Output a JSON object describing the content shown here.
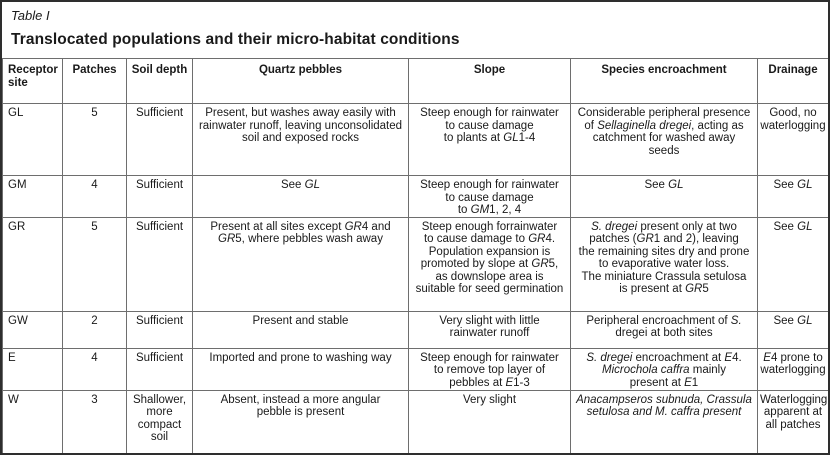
{
  "title": {
    "table_label": "Table I",
    "heading": "Translocated populations and their micro-habitat conditions"
  },
  "table": {
    "columns": [
      {
        "key": "site",
        "label": "Receptor site"
      },
      {
        "key": "patches",
        "label": "Patches"
      },
      {
        "key": "soil",
        "label": "Soil depth"
      },
      {
        "key": "quartz",
        "label": "Quartz pebbles"
      },
      {
        "key": "slope",
        "label": "Slope"
      },
      {
        "key": "species",
        "label": "Species encroachment"
      },
      {
        "key": "drainage",
        "label": "Drainage"
      }
    ],
    "rows": [
      {
        "site": [
          [
            {
              "t": "GL"
            }
          ]
        ],
        "patches": [
          [
            {
              "t": "5"
            }
          ]
        ],
        "soil": [
          [
            {
              "t": "Sufficient"
            }
          ]
        ],
        "quartz": [
          [
            {
              "t": "Present, but washes away easily with"
            }
          ],
          [
            {
              "t": "rainwater runoff, leaving unconsolidated"
            }
          ],
          [
            {
              "t": "soil and exposed rocks"
            }
          ]
        ],
        "slope": [
          [
            {
              "t": "Steep enough for rainwater"
            }
          ],
          [
            {
              "t": "to cause damage"
            }
          ],
          [
            {
              "t": "to plants at "
            },
            {
              "t": "GL",
              "i": true
            },
            {
              "t": "1-4"
            }
          ]
        ],
        "species": [
          [
            {
              "t": "Considerable peripheral presence"
            }
          ],
          [
            {
              "t": "of "
            },
            {
              "t": "Sellaginella dregei",
              "i": true
            },
            {
              "t": ", acting as"
            }
          ],
          [
            {
              "t": "catchment for washed away"
            }
          ],
          [
            {
              "t": "seeds"
            }
          ]
        ],
        "drainage": [
          [
            {
              "t": "Good, no"
            }
          ],
          [
            {
              "t": "waterlogging"
            }
          ]
        ]
      },
      {
        "site": [
          [
            {
              "t": "GM"
            }
          ]
        ],
        "patches": [
          [
            {
              "t": "4"
            }
          ]
        ],
        "soil": [
          [
            {
              "t": "Sufficient"
            }
          ]
        ],
        "quartz": [
          [
            {
              "t": "See "
            },
            {
              "t": "GL",
              "i": true
            }
          ]
        ],
        "slope": [
          [
            {
              "t": "Steep enough for rainwater"
            }
          ],
          [
            {
              "t": "to cause damage"
            }
          ],
          [
            {
              "t": "to "
            },
            {
              "t": "GM",
              "i": true
            },
            {
              "t": "1, 2, 4"
            }
          ]
        ],
        "species": [
          [
            {
              "t": "See "
            },
            {
              "t": "GL",
              "i": true
            }
          ]
        ],
        "drainage": [
          [
            {
              "t": "See "
            },
            {
              "t": "GL",
              "i": true
            }
          ]
        ]
      },
      {
        "site": [
          [
            {
              "t": "GR"
            }
          ]
        ],
        "patches": [
          [
            {
              "t": "5"
            }
          ]
        ],
        "soil": [
          [
            {
              "t": "Sufficient"
            }
          ]
        ],
        "quartz": [
          [
            {
              "t": "Present at all sites except "
            },
            {
              "t": "GR",
              "i": true
            },
            {
              "t": "4 and"
            }
          ],
          [
            {
              "t": "GR",
              "i": true
            },
            {
              "t": "5, where pebbles wash away"
            }
          ]
        ],
        "slope": [
          [
            {
              "t": "Steep enough forrainwater"
            }
          ],
          [
            {
              "t": "to cause damage to "
            },
            {
              "t": "GR",
              "i": true
            },
            {
              "t": "4."
            }
          ],
          [
            {
              "t": "Population expansion is"
            }
          ],
          [
            {
              "t": "promoted by slope at "
            },
            {
              "t": "GR",
              "i": true
            },
            {
              "t": "5,"
            }
          ],
          [
            {
              "t": "as downslope area is"
            }
          ],
          [
            {
              "t": "suitable for seed germination"
            }
          ]
        ],
        "species": [
          [
            {
              "t": "S. dregei",
              "i": true
            },
            {
              "t": " present only at two"
            }
          ],
          [
            {
              "t": "patches ("
            },
            {
              "t": "GR",
              "i": true
            },
            {
              "t": "1 and 2), leaving"
            }
          ],
          [
            {
              "t": "the remaining sites dry and prone"
            }
          ],
          [
            {
              "t": "to evaporative water loss."
            }
          ],
          [
            {
              "t": "The miniature Crassula setulosa"
            }
          ],
          [
            {
              "t": "is present at "
            },
            {
              "t": "GR",
              "i": true
            },
            {
              "t": "5"
            }
          ]
        ],
        "drainage": [
          [
            {
              "t": "See "
            },
            {
              "t": "GL",
              "i": true
            }
          ]
        ]
      },
      {
        "site": [
          [
            {
              "t": "GW"
            }
          ]
        ],
        "patches": [
          [
            {
              "t": "2"
            }
          ]
        ],
        "soil": [
          [
            {
              "t": "Sufficient"
            }
          ]
        ],
        "quartz": [
          [
            {
              "t": "Present and stable"
            }
          ]
        ],
        "slope": [
          [
            {
              "t": "Very slight with little"
            }
          ],
          [
            {
              "t": "rainwater runoff"
            }
          ]
        ],
        "species": [
          [
            {
              "t": "Peripheral encroachment of "
            },
            {
              "t": "S.",
              "i": true
            }
          ],
          [
            {
              "t": "dregei at both sites"
            }
          ]
        ],
        "drainage": [
          [
            {
              "t": "See "
            },
            {
              "t": "GL",
              "i": true
            }
          ]
        ]
      },
      {
        "site": [
          [
            {
              "t": "E"
            }
          ]
        ],
        "patches": [
          [
            {
              "t": "4"
            }
          ]
        ],
        "soil": [
          [
            {
              "t": "Sufficient"
            }
          ]
        ],
        "quartz": [
          [
            {
              "t": "Imported and prone to washing way"
            }
          ]
        ],
        "slope": [
          [
            {
              "t": "Steep enough for rainwater"
            }
          ],
          [
            {
              "t": "to remove top layer of"
            }
          ],
          [
            {
              "t": "pebbles at "
            },
            {
              "t": "E",
              "i": true
            },
            {
              "t": "1-3"
            }
          ]
        ],
        "species": [
          [
            {
              "t": "S. dregei",
              "i": true
            },
            {
              "t": " encroachment at "
            },
            {
              "t": "E",
              "i": true
            },
            {
              "t": "4."
            }
          ],
          [
            {
              "t": "Microchola caffra",
              "i": true
            },
            {
              "t": " mainly"
            }
          ],
          [
            {
              "t": "present at "
            },
            {
              "t": "E",
              "i": true
            },
            {
              "t": "1"
            }
          ]
        ],
        "drainage": [
          [
            {
              "t": "E",
              "i": true
            },
            {
              "t": "4 prone to"
            }
          ],
          [
            {
              "t": "waterlogging"
            }
          ]
        ]
      },
      {
        "site": [
          [
            {
              "t": "W"
            }
          ]
        ],
        "patches": [
          [
            {
              "t": "3"
            }
          ]
        ],
        "soil": [
          [
            {
              "t": "Shallower,"
            }
          ],
          [
            {
              "t": "more"
            }
          ],
          [
            {
              "t": "compact"
            }
          ],
          [
            {
              "t": "soil"
            }
          ]
        ],
        "quartz": [
          [
            {
              "t": "Absent, instead a more angular"
            }
          ],
          [
            {
              "t": "pebble is present"
            }
          ]
        ],
        "slope": [
          [
            {
              "t": "Very slight"
            }
          ]
        ],
        "species": [
          [
            {
              "t": "Anacampseros subnuda, Crassula",
              "i": true
            }
          ],
          [
            {
              "t": "setulosa and M. caffra present",
              "i": true
            }
          ]
        ],
        "drainage": [
          [
            {
              "t": "Waterlogging"
            }
          ],
          [
            {
              "t": "apparent at"
            }
          ],
          [
            {
              "t": "all patches"
            }
          ]
        ]
      }
    ]
  },
  "colors": {
    "outer_border": "#2e2e2e",
    "grid_line": "#6e6e6e",
    "text": "#1a1a1a",
    "background": "#ffffff"
  }
}
